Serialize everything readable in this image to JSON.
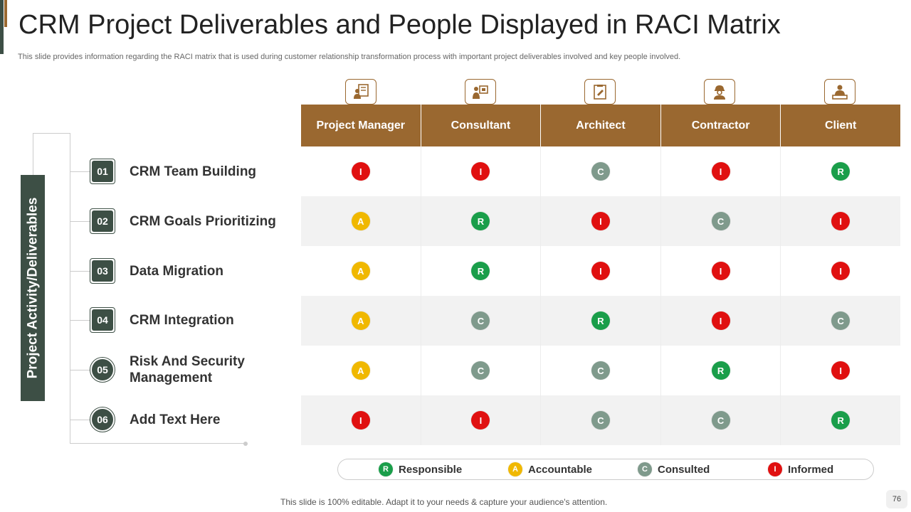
{
  "slide": {
    "title": "CRM Project Deliverables and People Displayed in RACI Matrix",
    "subtitle": "This slide provides information regarding the RACI matrix that is used during customer relationship transformation process with important project deliverables involved and key people involved.",
    "footer": "This slide is 100% editable. Adapt it to your needs & capture your audience's attention.",
    "page_number": "76"
  },
  "side_label": "Project Activity/Deliverables",
  "activities": [
    {
      "num": "01",
      "label": "CRM Team Building"
    },
    {
      "num": "02",
      "label": "CRM Goals Prioritizing"
    },
    {
      "num": "03",
      "label": "Data Migration"
    },
    {
      "num": "04",
      "label": "CRM Integration"
    },
    {
      "num": "05",
      "label": "Risk And Security Management"
    },
    {
      "num": "06",
      "label": "Add Text Here"
    }
  ],
  "roles": [
    {
      "label": "Project Manager",
      "icon": "manager-icon"
    },
    {
      "label": "Consultant",
      "icon": "consultant-icon"
    },
    {
      "label": "Architect",
      "icon": "architect-icon"
    },
    {
      "label": "Contractor",
      "icon": "contractor-icon"
    },
    {
      "label": "Client",
      "icon": "client-icon"
    }
  ],
  "matrix": [
    [
      "I",
      "I",
      "C",
      "I",
      "R"
    ],
    [
      "A",
      "R",
      "I",
      "C",
      "I"
    ],
    [
      "A",
      "R",
      "I",
      "I",
      "I"
    ],
    [
      "A",
      "C",
      "R",
      "I",
      "C"
    ],
    [
      "A",
      "C",
      "C",
      "R",
      "I"
    ],
    [
      "I",
      "I",
      "C",
      "C",
      "R"
    ]
  ],
  "legend": [
    {
      "code": "R",
      "label": "Responsible"
    },
    {
      "code": "A",
      "label": "Accountable"
    },
    {
      "code": "C",
      "label": "Consulted"
    },
    {
      "code": "I",
      "label": "Informed"
    }
  ],
  "colors": {
    "R": "#1a9e4a",
    "A": "#f0b800",
    "C": "#7f9a8c",
    "I": "#e01010",
    "header": "#9a6830",
    "dark": "#3d4f45"
  }
}
